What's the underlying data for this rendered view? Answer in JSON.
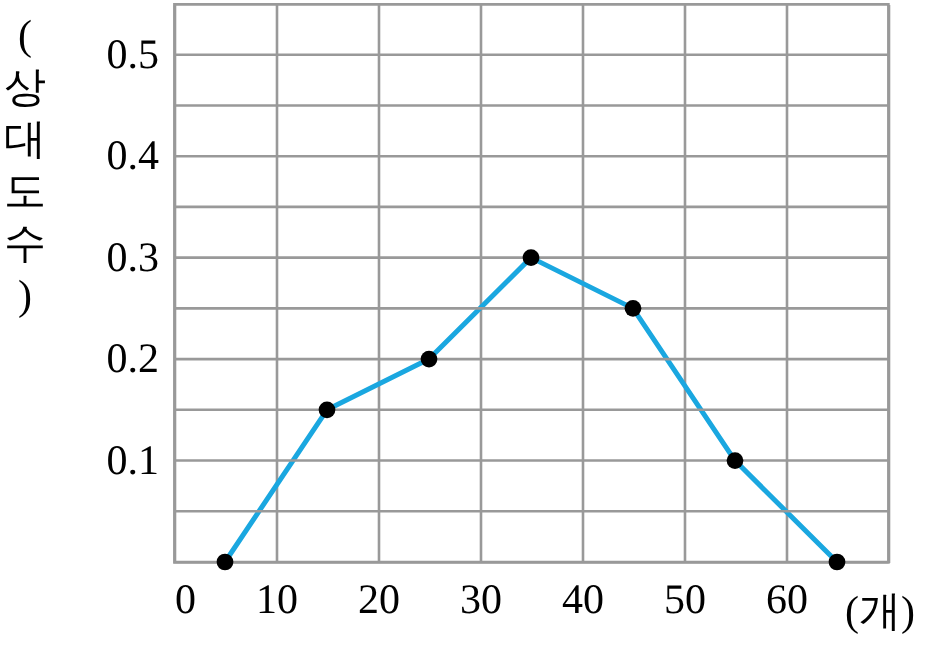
{
  "chart_data": {
    "type": "line",
    "xlabel": "(개)",
    "ylabel": "(상대도수)",
    "x": [
      5,
      15,
      25,
      35,
      45,
      55,
      65
    ],
    "series": [
      {
        "color": "#1aa7e0",
        "values": [
          0,
          0.15,
          0.2,
          0.3,
          0.25,
          0.1,
          0
        ]
      }
    ],
    "marker": "circle",
    "line_style": "solid",
    "grid": true,
    "xlim": [
      0,
      70
    ],
    "xticks": [
      0,
      10,
      20,
      30,
      40,
      50,
      60,
      {
        "value": 70,
        "label": null
      }
    ],
    "ylim": [
      0,
      0.55
    ],
    "yticks": [
      {
        "value": 0,
        "label": null
      },
      {
        "value": 0.05,
        "label": null
      },
      0.1,
      {
        "value": 0.15,
        "label": null
      },
      0.2,
      {
        "value": 0.25,
        "label": null
      },
      0.3,
      {
        "value": 0.35,
        "label": null
      },
      0.4,
      {
        "value": 0.45,
        "label": null
      },
      0.5
    ]
  }
}
